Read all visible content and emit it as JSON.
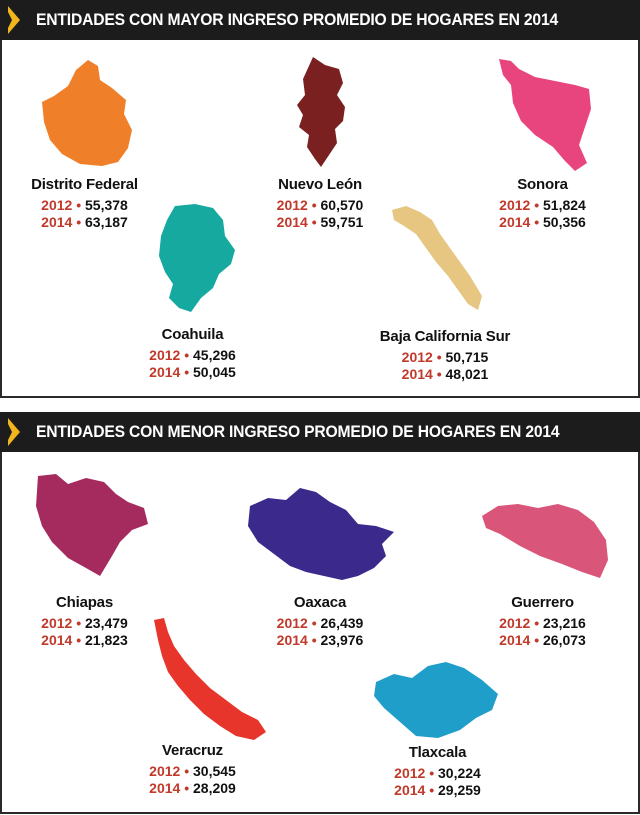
{
  "top": {
    "title": "ENTIDADES CON MAYOR INGRESO PROMEDIO DE HOGARES EN 2014",
    "states": [
      {
        "name": "Distrito Federal",
        "color": "#f07f2a",
        "y2012": "2012",
        "v2012": "55,378",
        "y2014": "2014",
        "v2014": "63,187"
      },
      {
        "name": "Nuevo León",
        "color": "#7a2020",
        "y2012": "2012",
        "v2012": "60,570",
        "y2014": "2014",
        "v2014": "59,751"
      },
      {
        "name": "Sonora",
        "color": "#e8447e",
        "y2012": "2012",
        "v2012": "51,824",
        "y2014": "2014",
        "v2014": "50,356"
      },
      {
        "name": "Coahuila",
        "color": "#16a9a0",
        "y2012": "2012",
        "v2012": "45,296",
        "y2014": "2014",
        "v2014": "50,045"
      },
      {
        "name": "Baja California Sur",
        "color": "#e6c680",
        "y2012": "2012",
        "v2012": "50,715",
        "y2014": "2014",
        "v2014": "48,021"
      }
    ]
  },
  "bottom": {
    "title": "ENTIDADES CON MENOR INGRESO PROMEDIO DE HOGARES EN 2014",
    "states": [
      {
        "name": "Chiapas",
        "color": "#a52a5e",
        "y2012": "2012",
        "v2012": "23,479",
        "y2014": "2014",
        "v2014": "21,823"
      },
      {
        "name": "Oaxaca",
        "color": "#3b2a8c",
        "y2012": "2012",
        "v2012": "26,439",
        "y2014": "2014",
        "v2014": "23,976"
      },
      {
        "name": "Guerrero",
        "color": "#d9557a",
        "y2012": "2012",
        "v2012": "23,216",
        "y2014": "2014",
        "v2014": "26,073"
      },
      {
        "name": "Veracruz",
        "color": "#e8352b",
        "y2012": "2012",
        "v2012": "30,545",
        "y2014": "2014",
        "v2014": "28,209"
      },
      {
        "name": "Tlaxcala",
        "color": "#1f9ec9",
        "y2012": "2012",
        "v2012": "30,224",
        "y2014": "2014",
        "v2014": "29,259"
      }
    ]
  }
}
